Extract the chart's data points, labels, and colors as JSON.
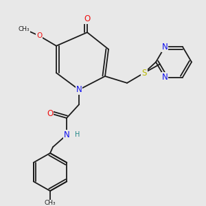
{
  "bg_color": "#e8e8e8",
  "colors": {
    "bond": "#1a1a1a",
    "N": "#1010ee",
    "O": "#ee1111",
    "S": "#b8b800",
    "H": "#228888"
  },
  "lw": 1.3,
  "dbl_sep": 0.012,
  "fs": 8.5,
  "fs_sm": 7.0,
  "fs_me": 6.5
}
